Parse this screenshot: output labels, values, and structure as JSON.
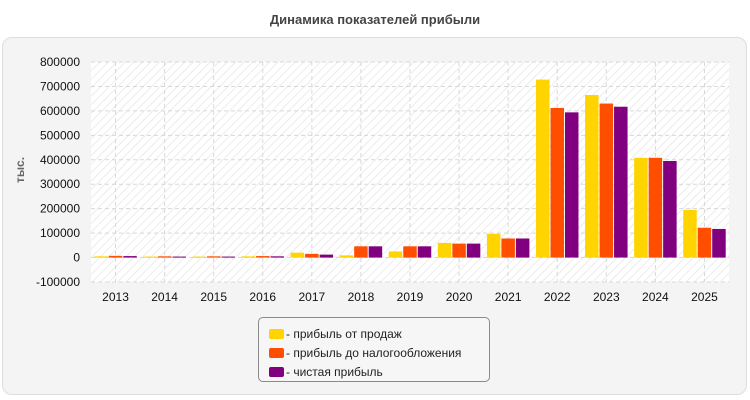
{
  "chart_data": {
    "type": "bar",
    "title": "Динамика показателей прибыли",
    "ylabel": "тыс.",
    "xlabel": "",
    "ylim": [
      -100000,
      800000
    ],
    "yticks": [
      -100000,
      0,
      100000,
      200000,
      300000,
      400000,
      500000,
      600000,
      700000,
      800000
    ],
    "categories": [
      "2013",
      "2014",
      "2015",
      "2016",
      "2017",
      "2018",
      "2019",
      "2020",
      "2021",
      "2022",
      "2023",
      "2024",
      "2025"
    ],
    "series": [
      {
        "name": "прибыль от продаж",
        "color": "#FFD400",
        "values": [
          5000,
          4000,
          4000,
          5000,
          20000,
          9000,
          25000,
          60000,
          97000,
          728000,
          665000,
          408000,
          195000
        ]
      },
      {
        "name": "прибыль до налогообложения",
        "color": "#FF4E00",
        "values": [
          7000,
          5000,
          5000,
          6000,
          15000,
          46000,
          46000,
          57000,
          78000,
          612000,
          630000,
          408000,
          122000
        ]
      },
      {
        "name": "чистая прибыль",
        "color": "#800080",
        "values": [
          6000,
          4000,
          4000,
          5000,
          12000,
          46000,
          46000,
          57000,
          78000,
          594000,
          617000,
          395000,
          117000
        ]
      }
    ],
    "grid": true,
    "legend_position": "bottom"
  }
}
